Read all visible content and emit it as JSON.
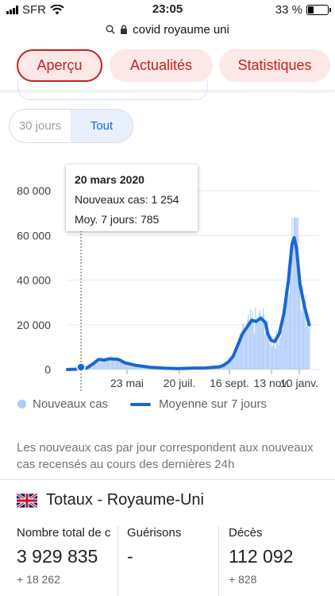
{
  "status_bar": {
    "carrier": "SFR",
    "time": "23:05",
    "battery": "33 %"
  },
  "browser": {
    "url": "covid royaume uni"
  },
  "tabs": [
    {
      "label": "Aperçu",
      "active": true
    },
    {
      "label": "Actualités",
      "active": false
    },
    {
      "label": "Statistiques",
      "active": false
    }
  ],
  "range": {
    "option_30": "30 jours",
    "option_all": "Tout",
    "selected": "Tout"
  },
  "tooltip": {
    "date": "20 mars 2020",
    "new_cases": "Nouveaux cas: 1 254",
    "avg7": "Moy. 7 jours: 785"
  },
  "chart_data": {
    "type": "bar",
    "x_tick_labels": [
      "23 mai",
      "20 juil.",
      "16 sept.",
      "13 nov.",
      "10 janv."
    ],
    "y_tick_labels": [
      "0",
      "20 000",
      "40 000",
      "60 000",
      "80 000"
    ],
    "ylim": [
      0,
      80000
    ],
    "grid": true,
    "legend_position": "bottom",
    "series": [
      {
        "name": "Nouveaux cas",
        "kind": "bar",
        "color": "#aecbfa"
      },
      {
        "name": "Moyenne sur 7 jours",
        "kind": "line",
        "color": "#1967d2",
        "points": [
          [
            0.0,
            0
          ],
          [
            0.06,
            300
          ],
          [
            0.085,
            785
          ],
          [
            0.11,
            2500
          ],
          [
            0.135,
            4500
          ],
          [
            0.16,
            4200
          ],
          [
            0.18,
            4800
          ],
          [
            0.22,
            4600
          ],
          [
            0.25,
            3000
          ],
          [
            0.3,
            1800
          ],
          [
            0.36,
            1000
          ],
          [
            0.42,
            600
          ],
          [
            0.48,
            400
          ],
          [
            0.54,
            600
          ],
          [
            0.6,
            700
          ],
          [
            0.66,
            1200
          ],
          [
            0.68,
            2000
          ],
          [
            0.7,
            3500
          ],
          [
            0.72,
            6000
          ],
          [
            0.74,
            11000
          ],
          [
            0.76,
            16000
          ],
          [
            0.78,
            19000
          ],
          [
            0.8,
            22000
          ],
          [
            0.82,
            21500
          ],
          [
            0.84,
            23000
          ],
          [
            0.86,
            21000
          ],
          [
            0.87,
            16000
          ],
          [
            0.885,
            13000
          ],
          [
            0.9,
            12500
          ],
          [
            0.92,
            16000
          ],
          [
            0.94,
            25000
          ],
          [
            0.96,
            40000
          ],
          [
            0.975,
            56000
          ],
          [
            0.985,
            59000
          ],
          [
            0.995,
            54000
          ],
          [
            1.01,
            38000
          ],
          [
            1.03,
            28000
          ],
          [
            1.05,
            20000
          ]
        ]
      }
    ]
  },
  "legend": {
    "new_cases": "Nouveaux cas",
    "avg7": "Moyenne sur 7 jours"
  },
  "note": "Les nouveaux cas par jour correspondent aux nouveaux cas recensés au cours des dernières 24h",
  "totals": {
    "title": "Totaux - Royaume-Uni",
    "total_label": "Nombre total de c",
    "total_value": "3 929 835",
    "total_delta": "+ 18 262",
    "recovered_label": "Guérisons",
    "recovered_value": "-",
    "deaths_label": "Décès",
    "deaths_value": "112 092",
    "deaths_delta": "+ 828"
  }
}
